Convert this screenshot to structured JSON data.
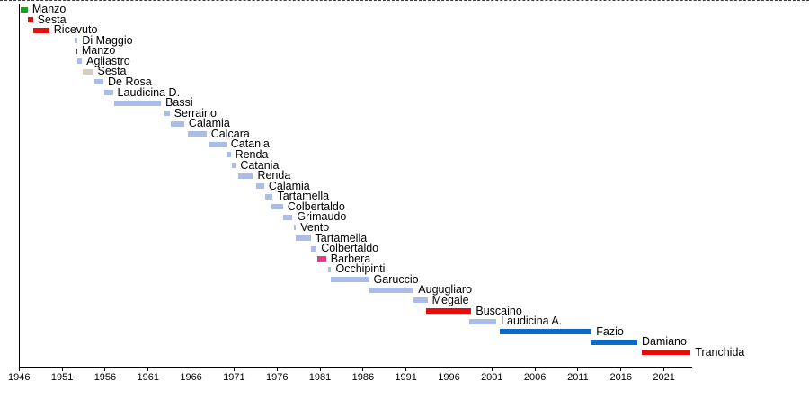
{
  "chart_data": {
    "type": "gantt",
    "title": "",
    "xlabel": "",
    "ylabel": "",
    "grid": false,
    "legend": false,
    "x_axis": {
      "range": [
        1946,
        2024.3
      ],
      "tick_step": 5,
      "ticks": [
        1946,
        1951,
        1956,
        1961,
        1966,
        1971,
        1976,
        1981,
        1986,
        1991,
        1996,
        2001,
        2006,
        2011,
        2016,
        2021
      ]
    },
    "colors": {
      "green": "#1fa11f",
      "red": "#e60d0d",
      "lightblue": "#a9bde6",
      "tan": "#d6ccc2",
      "magenta": "#e43e7f",
      "blue": "#0b6ac9",
      "axis": "#000000",
      "text": "#000000"
    },
    "bars": [
      {
        "label": "Manzo",
        "start": 1946.2,
        "end": 1947.0,
        "color": "green"
      },
      {
        "label": "Sesta",
        "start": 1947.0,
        "end": 1947.6,
        "color": "red"
      },
      {
        "label": "Ricevuto",
        "start": 1947.6,
        "end": 1949.5,
        "color": "red"
      },
      {
        "label": "Di Maggio",
        "start": 1952.4,
        "end": 1952.8,
        "color": "lightblue"
      },
      {
        "label": "Manzo",
        "start": 1952.62,
        "end": 1952.75,
        "color": "red"
      },
      {
        "label": "Agliastro",
        "start": 1952.8,
        "end": 1953.3,
        "color": "lightblue"
      },
      {
        "label": "Sesta",
        "start": 1953.4,
        "end": 1954.6,
        "color": "tan"
      },
      {
        "label": "De Rosa",
        "start": 1954.8,
        "end": 1955.8,
        "color": "lightblue"
      },
      {
        "label": "Laudicina D.",
        "start": 1955.9,
        "end": 1956.9,
        "color": "lightblue"
      },
      {
        "label": "Bassi",
        "start": 1957.0,
        "end": 1962.5,
        "color": "lightblue"
      },
      {
        "label": "Serraino",
        "start": 1962.9,
        "end": 1963.5,
        "color": "lightblue"
      },
      {
        "label": "Calamia",
        "start": 1963.6,
        "end": 1965.2,
        "color": "lightblue"
      },
      {
        "label": "Calcara",
        "start": 1965.6,
        "end": 1967.8,
        "color": "lightblue"
      },
      {
        "label": "Catania",
        "start": 1968.0,
        "end": 1970.1,
        "color": "lightblue"
      },
      {
        "label": "Renda",
        "start": 1970.1,
        "end": 1970.6,
        "color": "lightblue"
      },
      {
        "label": "Catania",
        "start": 1970.7,
        "end": 1971.2,
        "color": "lightblue"
      },
      {
        "label": "Renda",
        "start": 1971.5,
        "end": 1973.2,
        "color": "lightblue"
      },
      {
        "label": "Calamia",
        "start": 1973.6,
        "end": 1974.5,
        "color": "lightblue"
      },
      {
        "label": "Tartamella",
        "start": 1974.6,
        "end": 1975.5,
        "color": "lightblue"
      },
      {
        "label": "Colbertaldo",
        "start": 1975.4,
        "end": 1976.7,
        "color": "lightblue"
      },
      {
        "label": "Grimaudo",
        "start": 1976.7,
        "end": 1977.8,
        "color": "lightblue"
      },
      {
        "label": "Vento",
        "start": 1978.0,
        "end": 1978.2,
        "color": "lightblue"
      },
      {
        "label": "Tartamella",
        "start": 1978.2,
        "end": 1979.9,
        "color": "lightblue"
      },
      {
        "label": "Colbertaldo",
        "start": 1980.0,
        "end": 1980.6,
        "color": "lightblue"
      },
      {
        "label": "Barbera",
        "start": 1980.7,
        "end": 1981.7,
        "color": "magenta"
      },
      {
        "label": "Occhipinti",
        "start": 1981.9,
        "end": 1982.3,
        "color": "lightblue"
      },
      {
        "label": "Garuccio",
        "start": 1982.3,
        "end": 1986.7,
        "color": "lightblue"
      },
      {
        "label": "Augugliaro",
        "start": 1986.7,
        "end": 1991.9,
        "color": "lightblue"
      },
      {
        "label": "Megale",
        "start": 1991.9,
        "end": 1993.5,
        "color": "lightblue"
      },
      {
        "label": "Buscaino",
        "start": 1993.3,
        "end": 1998.6,
        "color": "red"
      },
      {
        "label": "Laudicina A.",
        "start": 1998.4,
        "end": 2001.5,
        "color": "lightblue"
      },
      {
        "label": "Fazio",
        "start": 2001.9,
        "end": 2012.6,
        "color": "blue"
      },
      {
        "label": "Damiano",
        "start": 2012.5,
        "end": 2017.9,
        "color": "blue"
      },
      {
        "label": "Tranchida",
        "start": 2018.4,
        "end": 2024.1,
        "color": "red"
      }
    ]
  }
}
